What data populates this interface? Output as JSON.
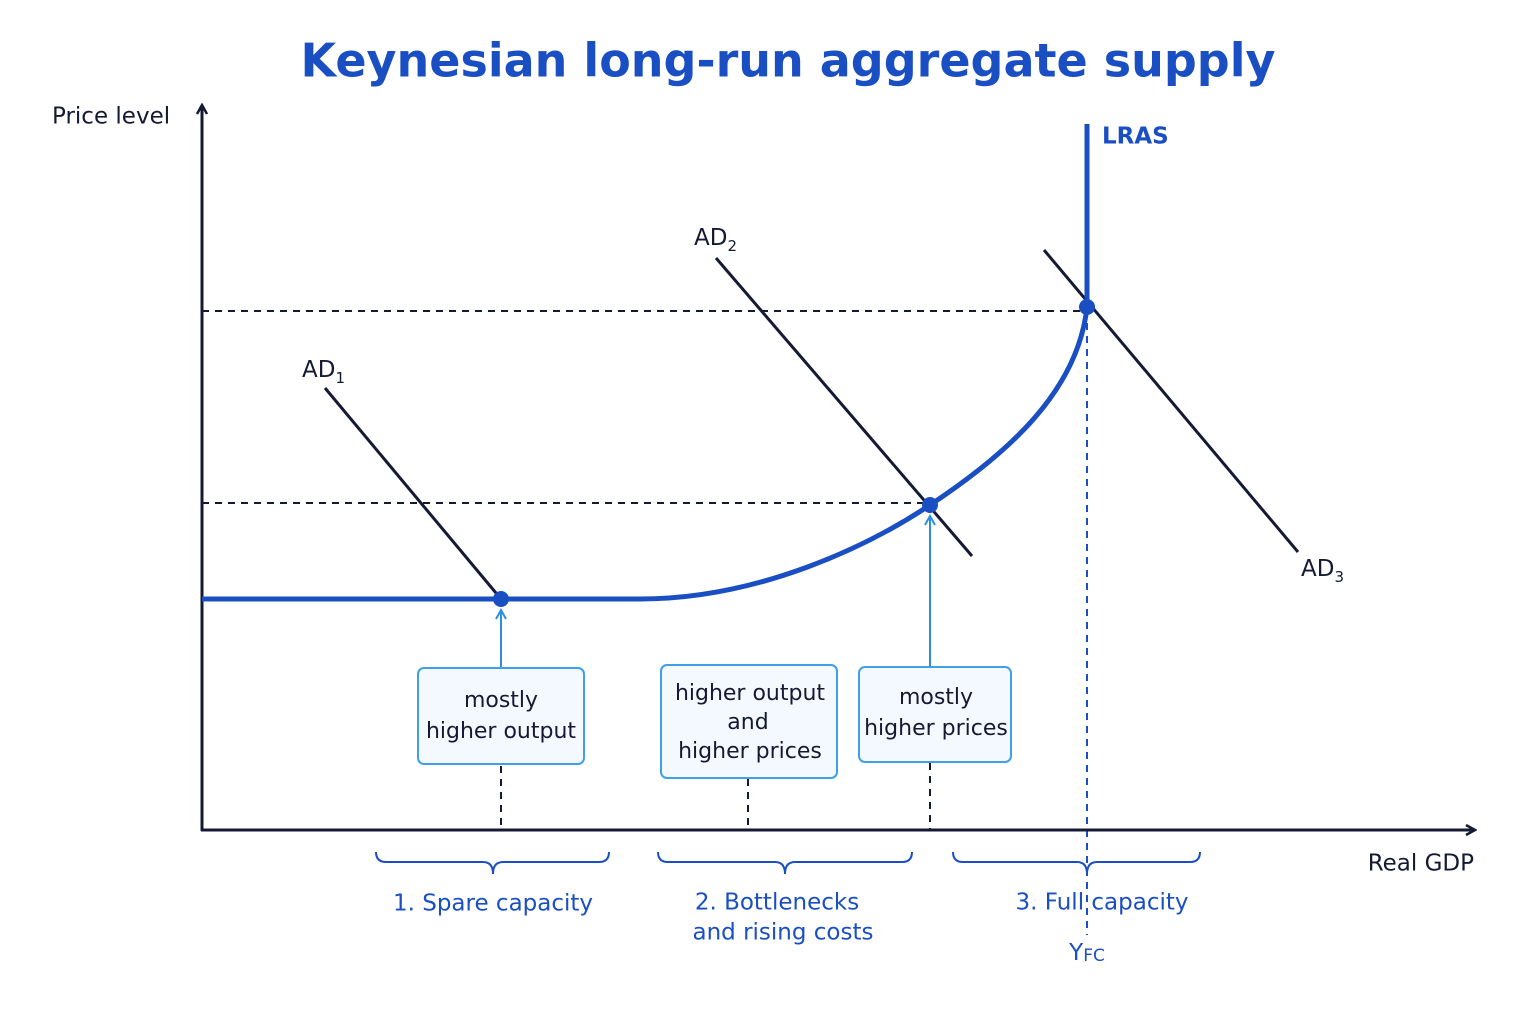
{
  "title": "Keynesian long-run aggregate supply",
  "axes": {
    "y_label": "Price level",
    "x_label": "Real GDP"
  },
  "curves": {
    "lras": "LRAS",
    "ad": [
      {
        "name": "AD",
        "sub": "1"
      },
      {
        "name": "AD",
        "sub": "2"
      },
      {
        "name": "AD",
        "sub": "3"
      }
    ]
  },
  "boxes": [
    {
      "lines": [
        "mostly",
        "higher output"
      ]
    },
    {
      "lines": [
        "higher output",
        "and",
        "higher prices"
      ]
    },
    {
      "lines": [
        "mostly",
        "higher prices"
      ]
    }
  ],
  "stages": [
    {
      "lines": [
        "1. Spare capacity"
      ]
    },
    {
      "lines": [
        "2. Bottlenecks",
        "and rising costs"
      ]
    },
    {
      "lines": [
        "3. Full capacity"
      ]
    }
  ],
  "yfc": {
    "name": "Y",
    "sub": "FC"
  }
}
